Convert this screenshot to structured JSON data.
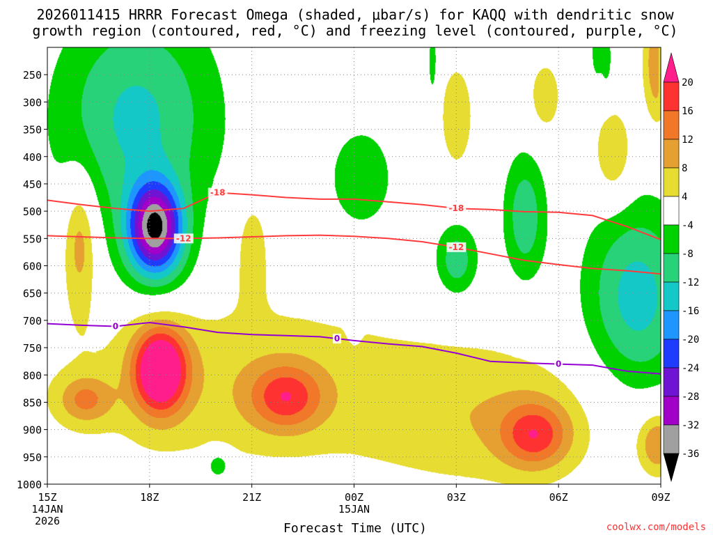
{
  "chart_data": {
    "type": "heatmap",
    "title_line1": "2026011415 HRRR Forecast Omega (shaded, μbar/s) for KAQQ with dendritic snow",
    "title_line2": "growth region (contoured, red, °C) and freezing level (contoured, purple, °C)",
    "xlabel": "Forecast Time (UTC)",
    "credit": "coolwx.com/models",
    "x_hours": [
      0,
      3,
      6,
      9,
      12,
      15,
      18
    ],
    "x_ticks": [
      {
        "hour": 0,
        "label": "15Z",
        "sub1": "14JAN",
        "sub2": "2026"
      },
      {
        "hour": 3,
        "label": "18Z",
        "sub1": "",
        "sub2": ""
      },
      {
        "hour": 6,
        "label": "21Z",
        "sub1": "",
        "sub2": ""
      },
      {
        "hour": 9,
        "label": "00Z",
        "sub1": "15JAN",
        "sub2": ""
      },
      {
        "hour": 12,
        "label": "03Z",
        "sub1": "",
        "sub2": ""
      },
      {
        "hour": 15,
        "label": "06Z",
        "sub1": "",
        "sub2": ""
      },
      {
        "hour": 18,
        "label": "09Z",
        "sub1": "",
        "sub2": ""
      }
    ],
    "y_levels_hpa": [
      250,
      300,
      350,
      400,
      450,
      500,
      550,
      600,
      650,
      700,
      750,
      800,
      850,
      900,
      950,
      1000
    ],
    "y_range_hpa": [
      200,
      1000
    ],
    "colorbar": {
      "labels": [
        "20",
        "16",
        "12",
        "8",
        "4",
        "-4",
        "-8",
        "-12",
        "-16",
        "-20",
        "-24",
        "-28",
        "-32",
        "-36"
      ],
      "bins": [
        {
          "lo": 20,
          "hi": 99,
          "color": "#ff1e8c"
        },
        {
          "lo": 16,
          "hi": 20,
          "color": "#ff3232"
        },
        {
          "lo": 12,
          "hi": 16,
          "color": "#f07828"
        },
        {
          "lo": 8,
          "hi": 12,
          "color": "#e6a032"
        },
        {
          "lo": 4,
          "hi": 8,
          "color": "#e6dc32"
        },
        {
          "lo": -4,
          "hi": 4,
          "color": "#ffffff"
        },
        {
          "lo": -8,
          "hi": -4,
          "color": "#00d200"
        },
        {
          "lo": -12,
          "hi": -8,
          "color": "#28d278"
        },
        {
          "lo": -16,
          "hi": -12,
          "color": "#14c8c8"
        },
        {
          "lo": -20,
          "hi": -16,
          "color": "#1e96ff"
        },
        {
          "lo": -24,
          "hi": -20,
          "color": "#1e3cff"
        },
        {
          "lo": -28,
          "hi": -24,
          "color": "#6e14d2"
        },
        {
          "lo": -32,
          "hi": -28,
          "color": "#a000c8"
        },
        {
          "lo": -36,
          "hi": -32,
          "color": "#a0a0a0"
        },
        {
          "lo": -99,
          "hi": -36,
          "color": "#000000"
        }
      ]
    },
    "omega_features": [
      {
        "name": "upper-ascent-core",
        "hour": 3.15,
        "p": 525,
        "sx": 0.55,
        "sy": 55,
        "peak": -31,
        "skew": 0
      },
      {
        "name": "upper-ascent-column",
        "hour": 2.6,
        "p": 330,
        "sx": 1.7,
        "sy": 150,
        "peak": -13,
        "skew": 0
      },
      {
        "name": "upper-ascent-lower-tail",
        "hour": 3.2,
        "p": 600,
        "sx": 0.8,
        "sy": 55,
        "peak": -7,
        "skew": 0
      },
      {
        "name": "midnight-descent-patch",
        "hour": 9.2,
        "p": 440,
        "sx": 0.75,
        "sy": 75,
        "peak": -7,
        "skew": 0
      },
      {
        "name": "03z-ascent-patch",
        "hour": 12.0,
        "p": 590,
        "sx": 0.45,
        "sy": 48,
        "peak": -11,
        "skew": 0
      },
      {
        "name": "05z-ascent-patch",
        "hour": 14.0,
        "p": 510,
        "sx": 0.45,
        "sy": 85,
        "peak": -11,
        "skew": 0
      },
      {
        "name": "late-ascent-wedge",
        "hour": 17.3,
        "p": 660,
        "sx": 1.1,
        "sy": 125,
        "peak": -14,
        "skew": 0
      },
      {
        "name": "small-ascent-blob",
        "hour": 5.0,
        "p": 965,
        "sx": 0.25,
        "sy": 18,
        "peak": -10,
        "skew": 0
      },
      {
        "name": "tiny-ascent-blob",
        "hour": 9.0,
        "p": 700,
        "sx": 0.12,
        "sy": 22,
        "peak": -6,
        "skew": 0
      },
      {
        "name": "02z-ascent-sliver",
        "hour": 11.3,
        "p": 230,
        "sx": 0.12,
        "sy": 60,
        "peak": -6,
        "skew": 0
      },
      {
        "name": "07z-ascent-sliver",
        "hour": 16.4,
        "p": 220,
        "sx": 0.13,
        "sy": 45,
        "peak": -6,
        "skew": 0
      },
      {
        "name": "09z-ascent-sliver",
        "hour": 18.0,
        "p": 230,
        "sx": 0.07,
        "sy": 40,
        "peak": -6,
        "skew": 0
      },
      {
        "name": "07z-upper-sliver",
        "hour": 16.1,
        "p": 210,
        "sx": 0.12,
        "sy": 38,
        "peak": -6,
        "skew": 0
      },
      {
        "name": "low-level-descent-core",
        "hour": 3.3,
        "p": 790,
        "sx": 0.55,
        "sy": 55,
        "peak": 26,
        "skew": 0
      },
      {
        "name": "low-level-descent-band",
        "hour": 5.5,
        "p": 810,
        "sx": 4.3,
        "sy": 125,
        "peak": 6.5,
        "skew": 0
      },
      {
        "name": "low-level-descent-band-2",
        "hour": 13.2,
        "p": 880,
        "sx": 2.6,
        "sy": 95,
        "peak": 6.5,
        "skew": 0
      },
      {
        "name": "left-descent-cell",
        "hour": 0.95,
        "p": 550,
        "sx": 0.35,
        "sy": 85,
        "peak": 11,
        "skew": 0
      },
      {
        "name": "left-descent-low",
        "hour": 1.1,
        "p": 845,
        "sx": 0.55,
        "sy": 30,
        "peak": 10,
        "skew": 0
      },
      {
        "name": "mid-descent-cell",
        "hour": 7.0,
        "p": 840,
        "sx": 0.75,
        "sy": 42,
        "peak": 14,
        "skew": 0
      },
      {
        "name": "05z-descent-cell",
        "hour": 14.3,
        "p": 910,
        "sx": 0.7,
        "sy": 42,
        "peak": 14,
        "skew": 0
      },
      {
        "name": "right-descent-low",
        "hour": 17.9,
        "p": 925,
        "sx": 0.4,
        "sy": 40,
        "peak": 12,
        "skew": 0
      },
      {
        "name": "03z-upper-descent",
        "hour": 12.0,
        "p": 325,
        "sx": 0.38,
        "sy": 75,
        "peak": 7,
        "skew": 0
      },
      {
        "name": "05z-upper-descent",
        "hour": 14.6,
        "p": 290,
        "sx": 0.35,
        "sy": 50,
        "peak": 7,
        "skew": 0
      },
      {
        "name": "07z-upper-descent",
        "hour": 16.6,
        "p": 395,
        "sx": 0.4,
        "sy": 60,
        "peak": 9,
        "skew": 0
      },
      {
        "name": "08z-upper-descent",
        "hour": 17.9,
        "p": 230,
        "sx": 0.3,
        "sy": 75,
        "peak": 12,
        "skew": 0
      },
      {
        "name": "21z-descent-plume",
        "hour": 6.0,
        "p": 560,
        "sx": 0.35,
        "sy": 70,
        "peak": 6,
        "skew": 0
      }
    ],
    "contours": [
      {
        "name": "dendritic-minus-18",
        "label": "-18",
        "color": "#ff3b3b",
        "hours": [
          0,
          1,
          2,
          3,
          4,
          5,
          6,
          7,
          8,
          9,
          10,
          11,
          12,
          13,
          14,
          15,
          16,
          17,
          18
        ],
        "p": [
          480,
          488,
          495,
          500,
          495,
          466,
          470,
          475,
          478,
          478,
          483,
          488,
          495,
          497,
          501,
          502,
          508,
          528,
          552
        ],
        "label_hours": [
          5.0,
          12.0
        ]
      },
      {
        "name": "dendritic-minus-12",
        "label": "-12",
        "color": "#ff3b3b",
        "hours": [
          0,
          1,
          2,
          3,
          4,
          5,
          6,
          7,
          8,
          9,
          10,
          11,
          12,
          13,
          14,
          15,
          16,
          17,
          18
        ],
        "p": [
          545,
          547,
          549,
          550,
          550,
          549,
          547,
          545,
          544,
          546,
          550,
          556,
          566,
          578,
          590,
          598,
          605,
          609,
          615
        ],
        "label_hours": [
          4.0,
          12.0
        ]
      },
      {
        "name": "freezing-level-0",
        "label": "0",
        "color": "#9400d3",
        "hours": [
          0,
          1,
          2,
          3,
          4,
          5,
          6,
          7,
          8,
          9,
          10,
          11,
          12,
          13,
          14,
          15,
          16,
          17,
          18
        ],
        "p": [
          706,
          709,
          711,
          704,
          712,
          722,
          726,
          728,
          730,
          737,
          743,
          748,
          760,
          775,
          778,
          780,
          782,
          793,
          798
        ],
        "label_hours": [
          2.0,
          8.5,
          15.0
        ]
      }
    ],
    "surface_layer_hpa": [
      1000,
      1030
    ]
  }
}
